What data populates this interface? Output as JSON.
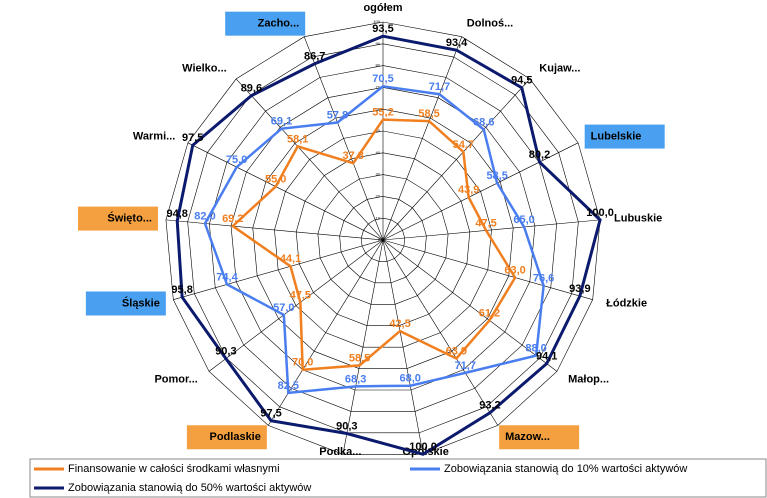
{
  "chart_data": {
    "type": "radar",
    "categories": [
      "ogółem",
      "Dolnoś...",
      "Kujaw...",
      "Lubelskie",
      "Lubuskie",
      "Łódzkie",
      "Małop...",
      "Mazow...",
      "Opolskie",
      "Podka...",
      "Podlaskie",
      "Pomor...",
      "Śląskie",
      "Święto...",
      "Warmi...",
      "Wielko...",
      "Zacho..."
    ],
    "series": [
      {
        "name": "Finansowanie w całości środkami własnymi",
        "color": "#f07f1f",
        "values": [
          55.2,
          58.5,
          54.7,
          43.9,
          47.5,
          63.0,
          61.2,
          63.9,
          42.5,
          58.5,
          70.0,
          47.5,
          44.1,
          69.2,
          55.0,
          58.1,
          37.8
        ],
        "value_labels": [
          "55,2",
          "58,5",
          "54,7",
          "43,9",
          "47,5",
          "63,0",
          "61,2",
          "63,9",
          "42,5",
          "58,5",
          "70,0",
          "47,5",
          "44,1",
          "69,2",
          "55,0",
          "58,1",
          "37,8"
        ]
      },
      {
        "name": "Zobowiązania stanowią do 10% wartości aktywów",
        "color": "#4a7ef0",
        "values": [
          70.5,
          71.7,
          68.6,
          58.5,
          65.0,
          76.6,
          88.0,
          71.7,
          68.0,
          68.3,
          82.5,
          57.0,
          74.4,
          82.0,
          75.0,
          69.1,
          57.8
        ],
        "value_labels": [
          "70,5",
          "71,7",
          "68,6",
          "58,5",
          "65,0",
          "76,6",
          "88,0",
          "71,7",
          "68,0",
          "68,3",
          "82,5",
          "57,0",
          "74,4",
          "82,0",
          "75,0",
          "69,1",
          "57,8"
        ]
      },
      {
        "name": "Zobowiązania stanowią do 50% wartości aktywów",
        "color": "#0c1a6e",
        "values": [
          93.5,
          93.4,
          94.5,
          80.2,
          100.0,
          93.9,
          94.1,
          93.2,
          100.0,
          90.3,
          97.5,
          90.3,
          95.8,
          94.8,
          97.5,
          89.6,
          86.7
        ],
        "value_labels": [
          "93,5",
          "93,4",
          "94,5",
          "80,2",
          "100,0",
          "93,9",
          "94,1",
          "93,2",
          "100,0",
          "90,3",
          "97,5",
          "90,3",
          "95,8",
          "94,8",
          "97,5",
          "89,6",
          "86,7"
        ]
      }
    ],
    "ylim": [
      0,
      100
    ],
    "yticks": [
      0,
      10,
      20,
      30,
      40,
      50,
      60,
      70,
      80,
      90,
      100
    ],
    "grid": true
  }
}
